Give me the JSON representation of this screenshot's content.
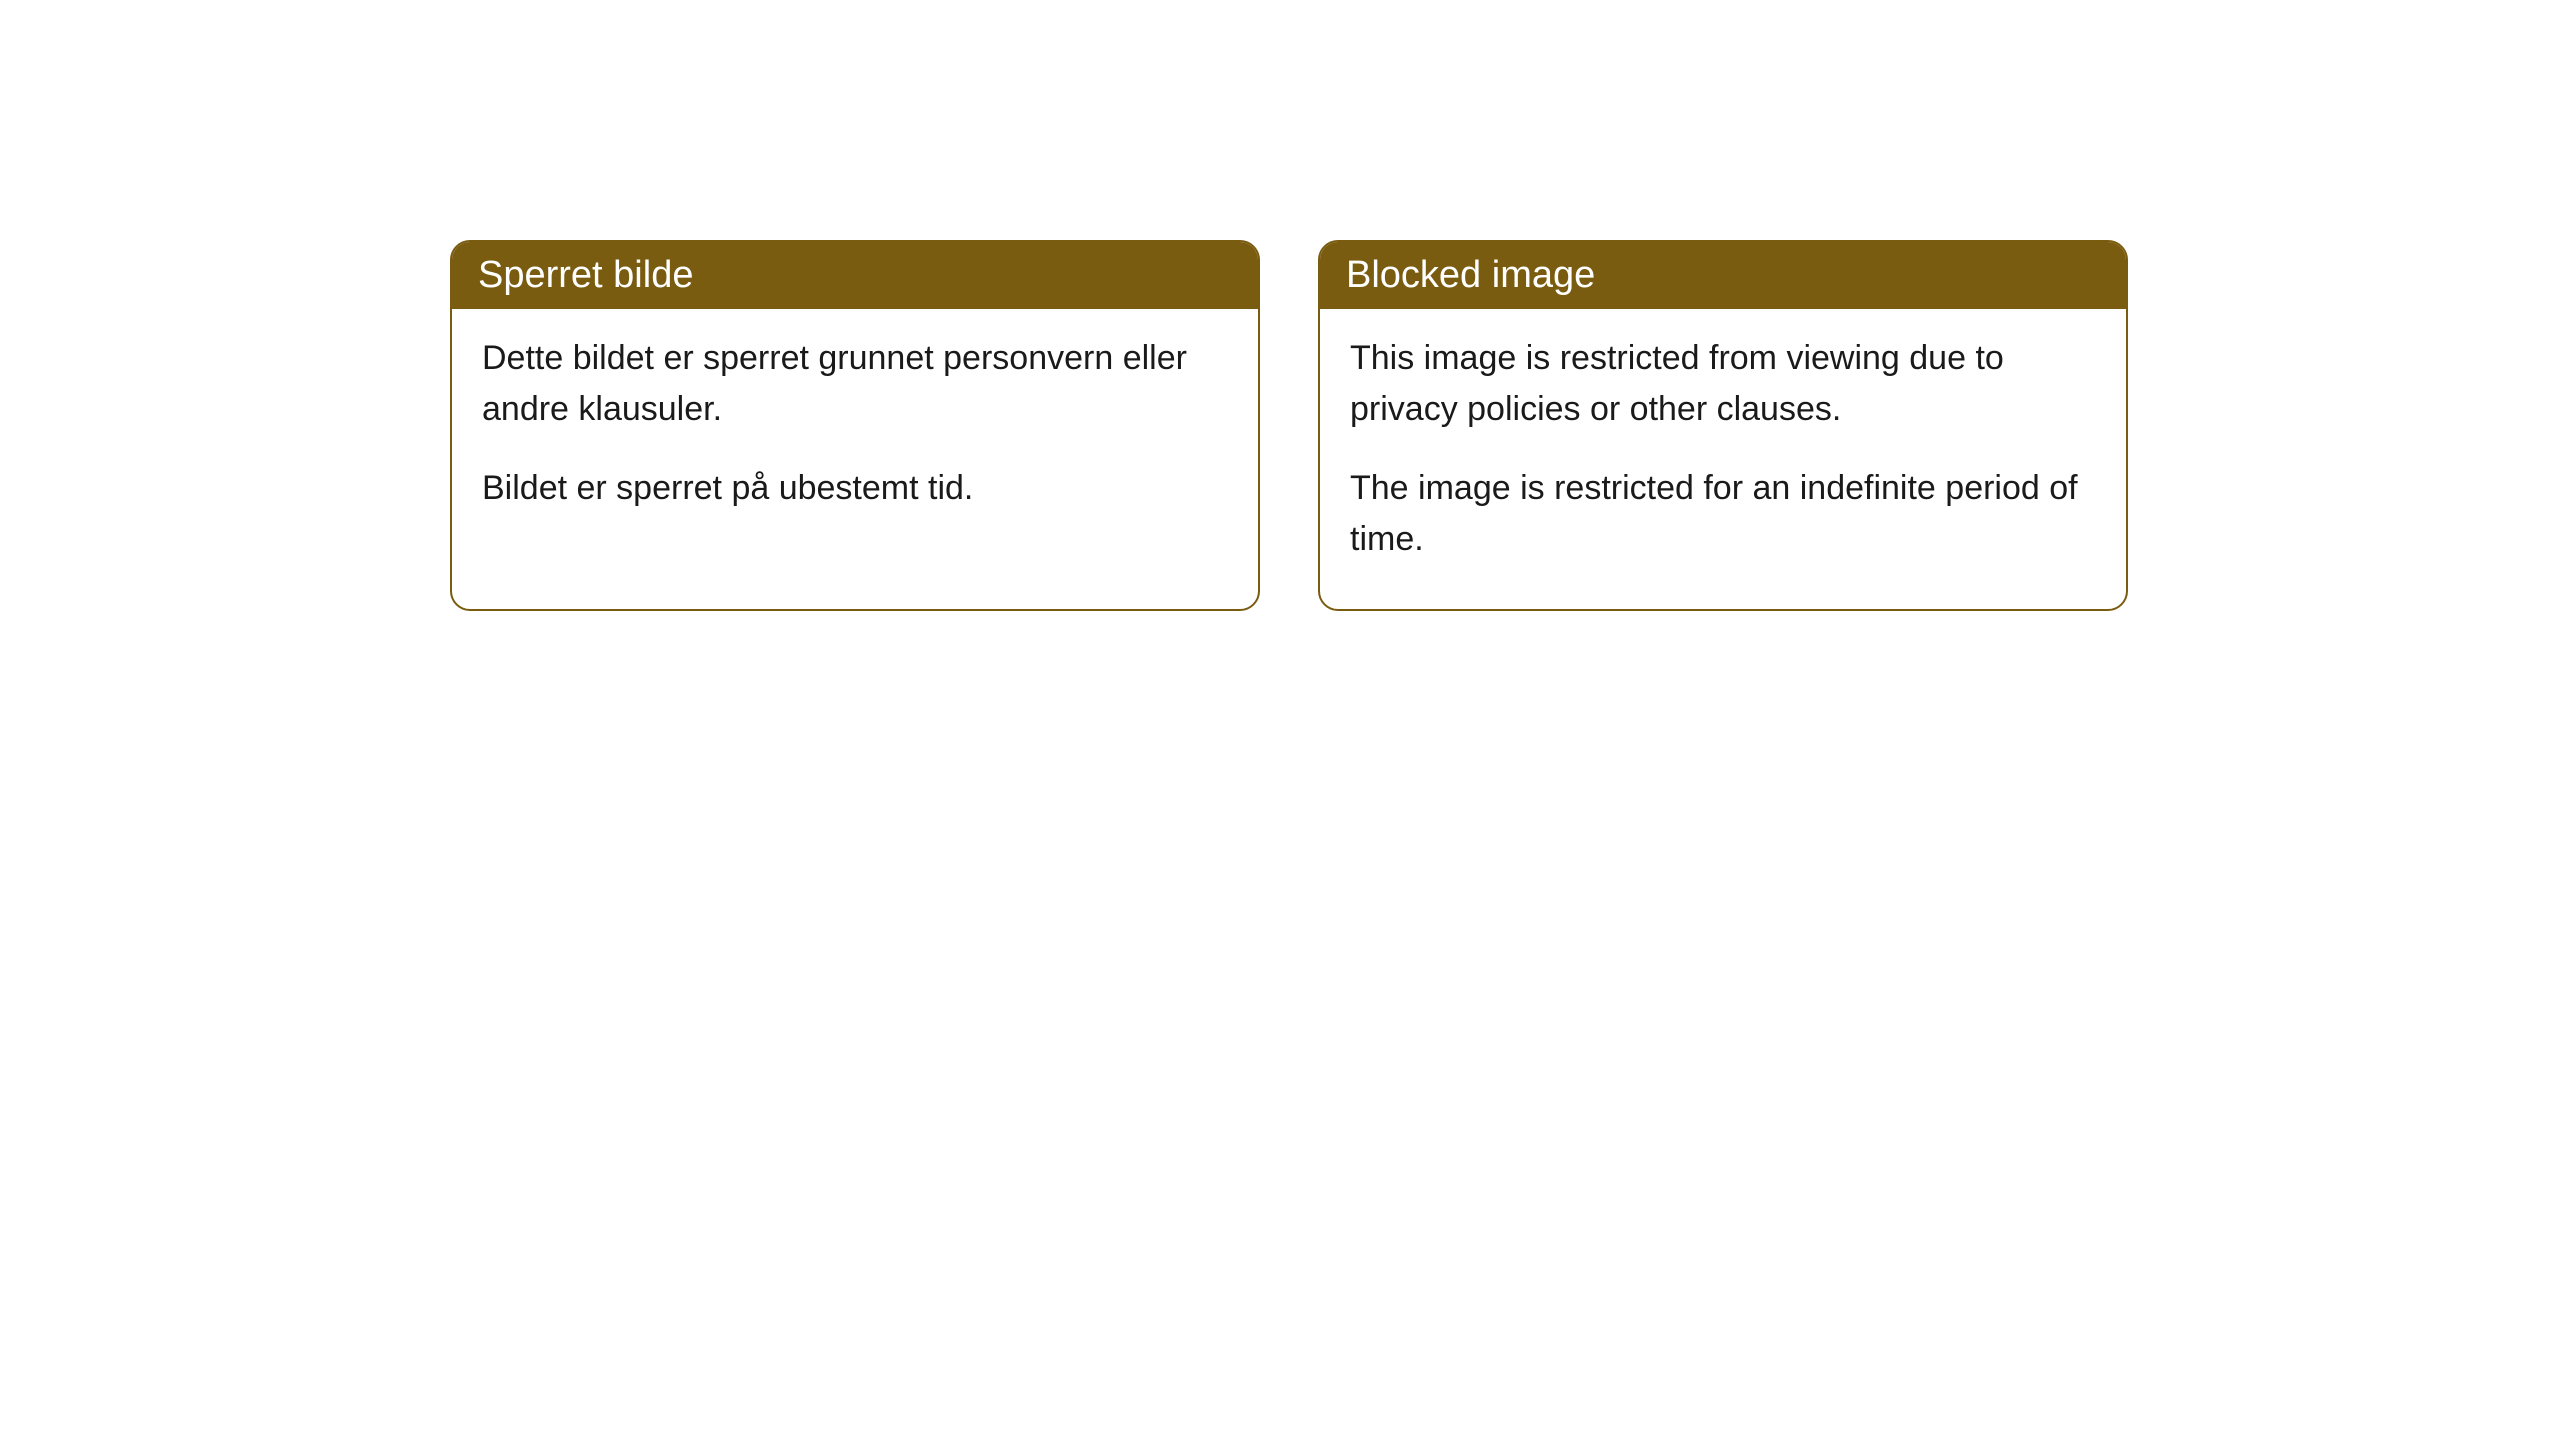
{
  "cards": [
    {
      "title": "Sperret bilde",
      "paragraph1": "Dette bildet er sperret grunnet personvern eller andre klausuler.",
      "paragraph2": "Bildet er sperret på ubestemt tid."
    },
    {
      "title": "Blocked image",
      "paragraph1": "This image is restricted from viewing due to privacy policies or other clauses.",
      "paragraph2": "The image is restricted for an indefinite period of time."
    }
  ],
  "styling": {
    "header_background": "#7a5c10",
    "header_text_color": "#ffffff",
    "border_color": "#7a5c10",
    "body_background": "#ffffff",
    "body_text_color": "#1a1a1a",
    "border_radius": 20,
    "title_fontsize": 38,
    "body_fontsize": 34
  }
}
